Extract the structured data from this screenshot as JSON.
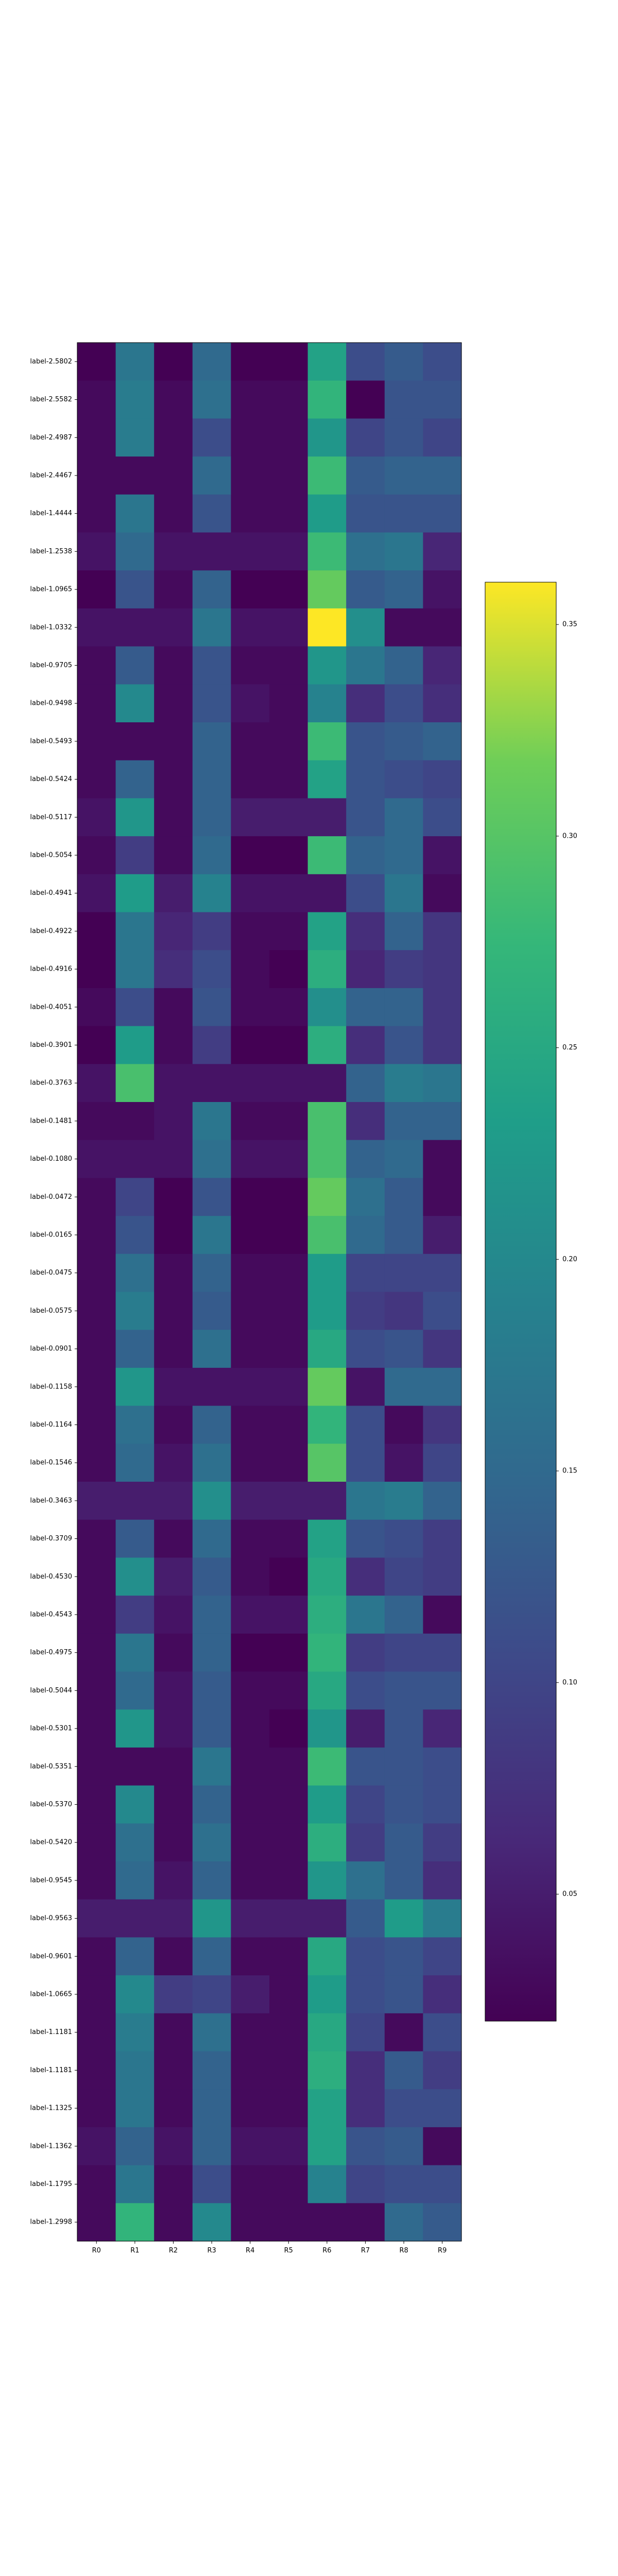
{
  "chart_data": {
    "type": "heatmap",
    "title": "",
    "xlabel": "",
    "ylabel": "",
    "colormap": "viridis",
    "columns": [
      "R0",
      "R1",
      "R2",
      "R3",
      "R4",
      "R5",
      "R6",
      "R7",
      "R8",
      "R9"
    ],
    "rows": [
      "label-2.5802",
      "label-2.5582",
      "label-2.4987",
      "label-2.4467",
      "label-1.4444",
      "label-1.2538",
      "label-1.0965",
      "label-1.0332",
      "label-0.9705",
      "label-0.9498",
      "label-0.5493",
      "label-0.5424",
      "label-0.5117",
      "label-0.5054",
      "label-0.4941",
      "label-0.4922",
      "label-0.4916",
      "label-0.4051",
      "label-0.3901",
      "label-0.3763",
      "label-0.1481",
      "label-0.1080",
      "label-0.0472",
      "label-0.0165",
      "label-0.0475",
      "label-0.0575",
      "label-0.0901",
      "label-0.1158",
      "label-0.1164",
      "label-0.1546",
      "label-0.3463",
      "label-0.3709",
      "label-0.4530",
      "label-0.4543",
      "label-0.4975",
      "label-0.5044",
      "label-0.5301",
      "label-0.5351",
      "label-0.5370",
      "label-0.5420",
      "label-0.9545",
      "label-0.9563",
      "label-0.9601",
      "label-1.0665",
      "label-1.1181",
      "label-1.1181",
      "label-1.1325",
      "label-1.1362",
      "label-1.1795",
      "label-1.2998"
    ],
    "colorbar": {
      "ticks": [
        "0.05",
        "0.10",
        "0.15",
        "0.20",
        "0.25",
        "0.30",
        "0.35"
      ],
      "tick_values": [
        0.05,
        0.1,
        0.15,
        0.2,
        0.25,
        0.3,
        0.35
      ],
      "range": [
        0.02,
        0.36
      ]
    },
    "values": [
      [
        0.02,
        0.17,
        0.02,
        0.15,
        0.02,
        0.02,
        0.24,
        0.11,
        0.13,
        0.11
      ],
      [
        0.03,
        0.18,
        0.03,
        0.16,
        0.03,
        0.03,
        0.27,
        0.02,
        0.12,
        0.12
      ],
      [
        0.03,
        0.18,
        0.03,
        0.11,
        0.03,
        0.03,
        0.22,
        0.1,
        0.12,
        0.1
      ],
      [
        0.03,
        0.03,
        0.03,
        0.15,
        0.03,
        0.03,
        0.28,
        0.13,
        0.14,
        0.14
      ],
      [
        0.03,
        0.17,
        0.03,
        0.12,
        0.03,
        0.03,
        0.23,
        0.12,
        0.12,
        0.12
      ],
      [
        0.04,
        0.15,
        0.04,
        0.04,
        0.04,
        0.04,
        0.28,
        0.16,
        0.17,
        0.06
      ],
      [
        0.02,
        0.12,
        0.03,
        0.14,
        0.02,
        0.02,
        0.31,
        0.13,
        0.14,
        0.04
      ],
      [
        0.04,
        0.04,
        0.04,
        0.17,
        0.04,
        0.04,
        0.36,
        0.21,
        0.03,
        0.03
      ],
      [
        0.03,
        0.13,
        0.03,
        0.12,
        0.03,
        0.03,
        0.22,
        0.17,
        0.14,
        0.06
      ],
      [
        0.03,
        0.2,
        0.03,
        0.12,
        0.04,
        0.03,
        0.19,
        0.07,
        0.11,
        0.07
      ],
      [
        0.03,
        0.03,
        0.03,
        0.14,
        0.03,
        0.03,
        0.28,
        0.12,
        0.13,
        0.14
      ],
      [
        0.03,
        0.14,
        0.03,
        0.14,
        0.03,
        0.03,
        0.24,
        0.12,
        0.11,
        0.1
      ],
      [
        0.04,
        0.22,
        0.03,
        0.14,
        0.05,
        0.05,
        0.05,
        0.12,
        0.15,
        0.11
      ],
      [
        0.03,
        0.09,
        0.03,
        0.15,
        0.02,
        0.02,
        0.28,
        0.14,
        0.15,
        0.04
      ],
      [
        0.04,
        0.23,
        0.05,
        0.19,
        0.04,
        0.04,
        0.04,
        0.11,
        0.17,
        0.03
      ],
      [
        0.02,
        0.17,
        0.06,
        0.09,
        0.03,
        0.03,
        0.24,
        0.07,
        0.14,
        0.08
      ],
      [
        0.02,
        0.17,
        0.07,
        0.11,
        0.03,
        0.02,
        0.26,
        0.06,
        0.09,
        0.08
      ],
      [
        0.03,
        0.11,
        0.03,
        0.12,
        0.03,
        0.03,
        0.21,
        0.14,
        0.14,
        0.08
      ],
      [
        0.02,
        0.23,
        0.03,
        0.09,
        0.02,
        0.02,
        0.26,
        0.07,
        0.12,
        0.08
      ],
      [
        0.04,
        0.29,
        0.04,
        0.04,
        0.04,
        0.04,
        0.04,
        0.14,
        0.18,
        0.17
      ],
      [
        0.03,
        0.03,
        0.04,
        0.17,
        0.03,
        0.03,
        0.29,
        0.07,
        0.14,
        0.14
      ],
      [
        0.04,
        0.04,
        0.04,
        0.16,
        0.04,
        0.04,
        0.29,
        0.14,
        0.15,
        0.03
      ],
      [
        0.03,
        0.1,
        0.02,
        0.12,
        0.02,
        0.02,
        0.31,
        0.16,
        0.13,
        0.03
      ],
      [
        0.03,
        0.12,
        0.02,
        0.17,
        0.02,
        0.02,
        0.29,
        0.15,
        0.13,
        0.05
      ],
      [
        0.03,
        0.16,
        0.03,
        0.14,
        0.03,
        0.03,
        0.23,
        0.1,
        0.1,
        0.1
      ],
      [
        0.03,
        0.18,
        0.03,
        0.13,
        0.03,
        0.03,
        0.23,
        0.09,
        0.08,
        0.11
      ],
      [
        0.03,
        0.14,
        0.03,
        0.16,
        0.03,
        0.03,
        0.25,
        0.11,
        0.12,
        0.08
      ],
      [
        0.03,
        0.22,
        0.04,
        0.04,
        0.04,
        0.04,
        0.31,
        0.04,
        0.15,
        0.15
      ],
      [
        0.03,
        0.16,
        0.03,
        0.14,
        0.03,
        0.03,
        0.27,
        0.11,
        0.03,
        0.08
      ],
      [
        0.03,
        0.15,
        0.04,
        0.16,
        0.03,
        0.03,
        0.3,
        0.11,
        0.04,
        0.1
      ],
      [
        0.05,
        0.05,
        0.05,
        0.21,
        0.05,
        0.05,
        0.05,
        0.17,
        0.18,
        0.14
      ],
      [
        0.03,
        0.13,
        0.03,
        0.15,
        0.03,
        0.03,
        0.24,
        0.12,
        0.11,
        0.09
      ],
      [
        0.03,
        0.21,
        0.05,
        0.13,
        0.03,
        0.02,
        0.25,
        0.07,
        0.1,
        0.09
      ],
      [
        0.03,
        0.09,
        0.04,
        0.14,
        0.04,
        0.04,
        0.26,
        0.17,
        0.14,
        0.03
      ],
      [
        0.03,
        0.17,
        0.03,
        0.14,
        0.02,
        0.02,
        0.27,
        0.09,
        0.1,
        0.1
      ],
      [
        0.03,
        0.15,
        0.04,
        0.13,
        0.03,
        0.03,
        0.25,
        0.11,
        0.12,
        0.12
      ],
      [
        0.03,
        0.22,
        0.04,
        0.13,
        0.03,
        0.02,
        0.22,
        0.05,
        0.12,
        0.06
      ],
      [
        0.03,
        0.03,
        0.03,
        0.17,
        0.03,
        0.03,
        0.28,
        0.12,
        0.12,
        0.11
      ],
      [
        0.03,
        0.2,
        0.03,
        0.14,
        0.03,
        0.03,
        0.23,
        0.1,
        0.12,
        0.11
      ],
      [
        0.03,
        0.16,
        0.03,
        0.16,
        0.03,
        0.03,
        0.26,
        0.09,
        0.13,
        0.09
      ],
      [
        0.03,
        0.15,
        0.04,
        0.14,
        0.03,
        0.03,
        0.22,
        0.16,
        0.13,
        0.07
      ],
      [
        0.05,
        0.05,
        0.05,
        0.22,
        0.05,
        0.05,
        0.05,
        0.13,
        0.23,
        0.18
      ],
      [
        0.03,
        0.14,
        0.03,
        0.14,
        0.03,
        0.03,
        0.25,
        0.11,
        0.12,
        0.1
      ],
      [
        0.03,
        0.2,
        0.09,
        0.1,
        0.05,
        0.03,
        0.23,
        0.11,
        0.12,
        0.07
      ],
      [
        0.03,
        0.18,
        0.03,
        0.16,
        0.03,
        0.03,
        0.25,
        0.1,
        0.03,
        0.11
      ],
      [
        0.03,
        0.17,
        0.03,
        0.14,
        0.03,
        0.03,
        0.26,
        0.07,
        0.13,
        0.09
      ],
      [
        0.03,
        0.17,
        0.03,
        0.14,
        0.03,
        0.03,
        0.24,
        0.07,
        0.11,
        0.11
      ],
      [
        0.04,
        0.14,
        0.04,
        0.14,
        0.04,
        0.04,
        0.24,
        0.12,
        0.13,
        0.03
      ],
      [
        0.03,
        0.17,
        0.03,
        0.11,
        0.03,
        0.03,
        0.19,
        0.1,
        0.11,
        0.11
      ],
      [
        0.03,
        0.27,
        0.03,
        0.2,
        0.03,
        0.03,
        0.03,
        0.03,
        0.15,
        0.13
      ]
    ]
  }
}
